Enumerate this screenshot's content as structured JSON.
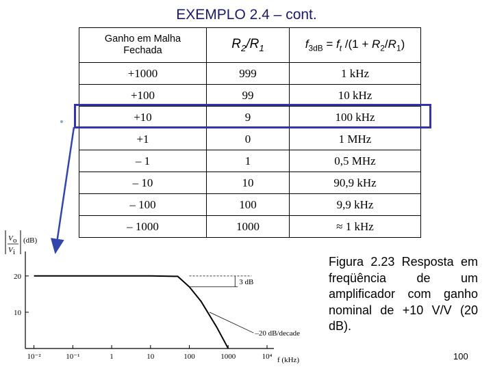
{
  "title": "EXEMPLO 2.4 – cont.",
  "table": {
    "headers": {
      "col1_line1": "Ganho em Malha",
      "col1_line2": "Fechada",
      "col2": "R2/R1",
      "col3": "f3dB = ft/(1 + R2/R1)"
    },
    "rows": [
      [
        "+1000",
        "999",
        "1 kHz"
      ],
      [
        "+100",
        "99",
        "10 kHz"
      ],
      [
        "+10",
        "9",
        "100 kHz"
      ],
      [
        "+1",
        "0",
        "1 MHz"
      ],
      [
        "– 1",
        "1",
        "0,5 MHz"
      ],
      [
        "– 10",
        "10",
        "90,9 kHz"
      ],
      [
        "– 100",
        "100",
        "9,9 kHz"
      ],
      [
        "– 1000",
        "1000",
        "≈ 1 kHz"
      ]
    ]
  },
  "caption": "Figura 2.23  Resposta em freqüência de um amplificador com ganho nominal de +10 V/V (20 dB).",
  "page_number": "100",
  "plot": {
    "ylabel_unit": "(dB)",
    "xlabel": "f (kHz)",
    "y_ticks": [
      "20",
      "10"
    ],
    "x_ticks": [
      "10⁻²",
      "10⁻¹",
      "1",
      "10",
      "100",
      "1000",
      "10⁴"
    ],
    "annotation_3db": "3 dB",
    "annotation_slope": "–20 dB/decade",
    "chart_data": {
      "type": "line",
      "x": [
        0.01,
        0.1,
        1,
        10,
        50,
        100,
        200,
        500,
        1000
      ],
      "y": [
        20,
        20,
        20,
        20,
        19.9,
        17,
        13,
        6,
        0
      ],
      "xscale": "log",
      "xlim": [
        0.006,
        15000
      ],
      "ylim": [
        0,
        26
      ],
      "xlabel": "f (kHz)",
      "ylabel": "(dB)"
    }
  },
  "colors": {
    "title": "#1a1a66",
    "highlight": "#3333aa",
    "arrow": "#3344aa"
  }
}
